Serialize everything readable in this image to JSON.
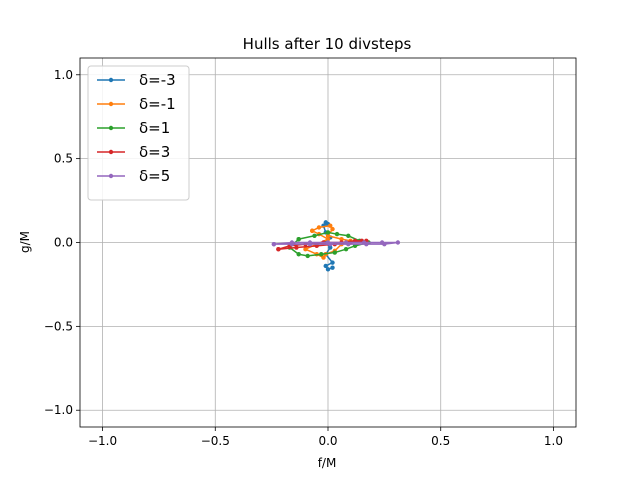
{
  "chart_data": {
    "type": "line",
    "title": "Hulls after 10 divsteps",
    "xlabel": "f/M",
    "ylabel": "g/M",
    "xlim": [
      -1.1,
      1.1
    ],
    "ylim": [
      -1.1,
      1.1
    ],
    "xticks": [
      -1.0,
      -0.5,
      0.0,
      0.5,
      1.0
    ],
    "yticks": [
      -1.0,
      -0.5,
      0.0,
      0.5,
      1.0
    ],
    "xtick_labels": [
      "−1.0",
      "−0.5",
      "0.0",
      "0.5",
      "1.0"
    ],
    "ytick_labels": [
      "−1.0",
      "−0.5",
      "0.0",
      "0.5",
      "1.0"
    ],
    "grid": true,
    "legend_position": "top-left",
    "series": [
      {
        "name": "δ=-3",
        "color": "#1f77b4",
        "points": [
          [
            -0.01,
            0.12
          ],
          [
            0.0,
            0.11
          ],
          [
            -0.02,
            0.1
          ],
          [
            -0.01,
            0.06
          ],
          [
            0.01,
            0.03
          ],
          [
            -0.01,
            0.0
          ],
          [
            0.01,
            -0.03
          ],
          [
            -0.01,
            -0.07
          ],
          [
            0.02,
            -0.12
          ],
          [
            -0.01,
            -0.14
          ],
          [
            0.0,
            -0.16
          ],
          [
            0.02,
            -0.15
          ]
        ]
      },
      {
        "name": "δ=-1",
        "color": "#ff7f0e",
        "points": [
          [
            -0.07,
            0.07
          ],
          [
            -0.04,
            0.09
          ],
          [
            0.01,
            0.1
          ],
          [
            0.02,
            0.08
          ],
          [
            0.0,
            0.04
          ],
          [
            0.06,
            0.02
          ],
          [
            0.1,
            0.01
          ],
          [
            0.06,
            -0.01
          ],
          [
            0.03,
            -0.05
          ],
          [
            -0.01,
            -0.07
          ],
          [
            -0.02,
            -0.09
          ],
          [
            -0.05,
            -0.07
          ],
          [
            -0.1,
            -0.04
          ],
          [
            -0.05,
            -0.01
          ],
          [
            0.0,
            0.02
          ],
          [
            -0.04,
            0.05
          ],
          [
            -0.07,
            0.07
          ]
        ]
      },
      {
        "name": "δ=1",
        "color": "#2ca02c",
        "points": [
          [
            -0.13,
            0.02
          ],
          [
            -0.06,
            0.04
          ],
          [
            0.0,
            0.06
          ],
          [
            0.04,
            0.05
          ],
          [
            0.09,
            0.04
          ],
          [
            0.14,
            0.01
          ],
          [
            0.18,
            0.0
          ],
          [
            0.12,
            -0.02
          ],
          [
            0.08,
            -0.04
          ],
          [
            0.03,
            -0.06
          ],
          [
            -0.03,
            -0.07
          ],
          [
            -0.09,
            -0.08
          ],
          [
            -0.13,
            -0.07
          ],
          [
            -0.17,
            -0.03
          ],
          [
            -0.13,
            0.02
          ]
        ]
      },
      {
        "name": "δ=3",
        "color": "#d62728",
        "points": [
          [
            -0.22,
            -0.04
          ],
          [
            -0.14,
            -0.03
          ],
          [
            -0.05,
            -0.02
          ],
          [
            0.03,
            -0.01
          ],
          [
            0.1,
            0.0
          ],
          [
            0.15,
            0.01
          ],
          [
            0.17,
            0.01
          ],
          [
            0.12,
            0.01
          ],
          [
            0.06,
            0.0
          ],
          [
            -0.02,
            0.0
          ],
          [
            -0.1,
            -0.01
          ],
          [
            -0.17,
            -0.02
          ],
          [
            -0.22,
            -0.04
          ]
        ]
      },
      {
        "name": "δ=5",
        "color": "#9467bd",
        "points": [
          [
            -0.24,
            -0.01
          ],
          [
            -0.16,
            0.0
          ],
          [
            -0.08,
            0.0
          ],
          [
            0.0,
            0.0
          ],
          [
            0.08,
            0.0
          ],
          [
            0.16,
            0.0
          ],
          [
            0.24,
            0.0
          ],
          [
            0.31,
            0.0
          ],
          [
            0.25,
            -0.01
          ],
          [
            0.17,
            -0.01
          ],
          [
            0.09,
            -0.01
          ],
          [
            0.01,
            -0.01
          ],
          [
            -0.08,
            -0.01
          ],
          [
            -0.16,
            -0.01
          ],
          [
            -0.24,
            -0.01
          ]
        ]
      }
    ]
  }
}
